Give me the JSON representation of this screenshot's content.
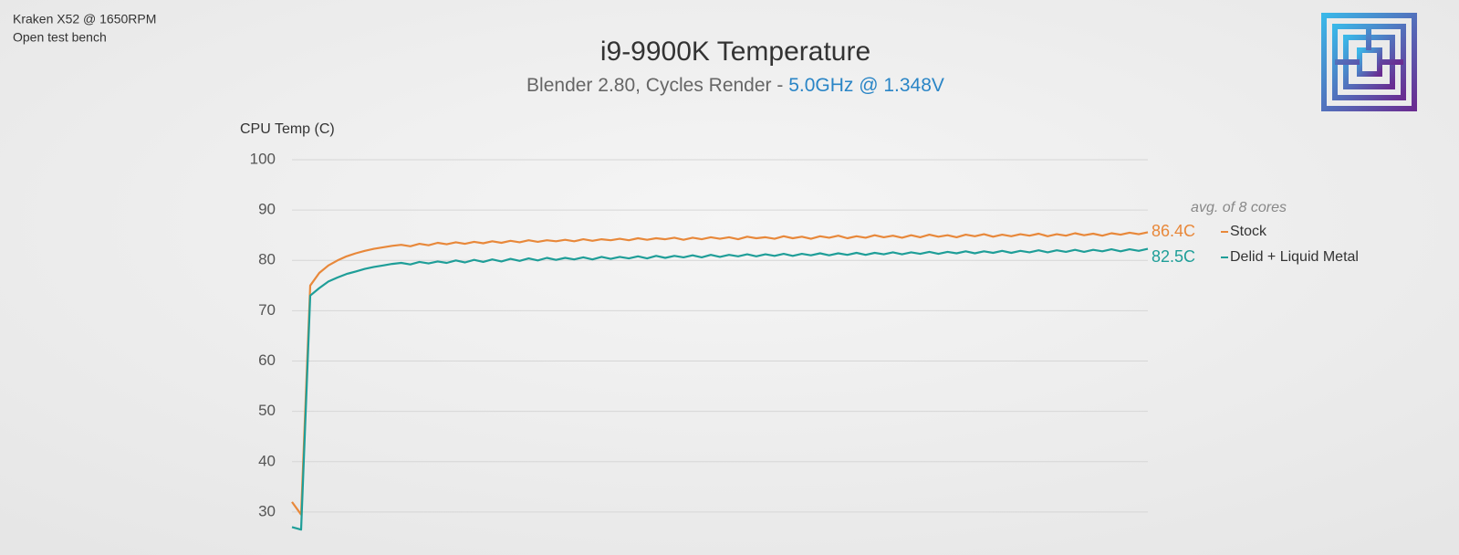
{
  "chart_data": {
    "type": "line",
    "notes": [
      "Kraken X52 @ 1650RPM",
      "Open test bench"
    ],
    "title": "i9-9900K Temperature",
    "subtitle": "Blender 2.80, Cycles Render - ",
    "subtitle_highlight": "5.0GHz @ 1.348V",
    "y_label": "CPU Temp (C)",
    "legend_title": "avg. of 8 cores",
    "ylim": [
      22,
      100
    ],
    "yticks": [
      30,
      40,
      50,
      60,
      70,
      80,
      90,
      100
    ],
    "grid": true,
    "series": [
      {
        "name": "Stock",
        "color": "#e8883a",
        "end_label": "86.4C",
        "values": [
          32,
          29.5,
          75,
          77.5,
          79,
          80,
          80.8,
          81.4,
          81.9,
          82.3,
          82.6,
          82.9,
          83.1,
          82.8,
          83.3,
          83.0,
          83.5,
          83.2,
          83.6,
          83.3,
          83.7,
          83.4,
          83.8,
          83.5,
          83.9,
          83.6,
          84.0,
          83.7,
          84.0,
          83.8,
          84.1,
          83.8,
          84.2,
          83.9,
          84.2,
          84.0,
          84.3,
          84.0,
          84.4,
          84.1,
          84.4,
          84.2,
          84.5,
          84.1,
          84.5,
          84.2,
          84.6,
          84.3,
          84.6,
          84.2,
          84.7,
          84.4,
          84.6,
          84.3,
          84.8,
          84.4,
          84.7,
          84.3,
          84.8,
          84.5,
          84.9,
          84.4,
          84.8,
          84.5,
          85.0,
          84.6,
          84.9,
          84.5,
          85.0,
          84.6,
          85.1,
          84.7,
          85.0,
          84.6,
          85.1,
          84.8,
          85.2,
          84.7,
          85.1,
          84.8,
          85.2,
          84.9,
          85.3,
          84.8,
          85.2,
          84.9,
          85.4,
          85.0,
          85.3,
          84.9,
          85.4,
          85.1,
          85.5,
          85.2,
          85.6
        ]
      },
      {
        "name": "Delid + Liquid Metal",
        "color": "#1f9e98",
        "end_label": "82.5C",
        "values": [
          27,
          26.5,
          73,
          74.5,
          75.8,
          76.6,
          77.3,
          77.8,
          78.3,
          78.7,
          79.0,
          79.3,
          79.5,
          79.2,
          79.7,
          79.4,
          79.8,
          79.5,
          80.0,
          79.6,
          80.1,
          79.7,
          80.2,
          79.8,
          80.3,
          79.9,
          80.4,
          80.0,
          80.5,
          80.1,
          80.5,
          80.2,
          80.6,
          80.2,
          80.7,
          80.3,
          80.7,
          80.4,
          80.8,
          80.4,
          80.9,
          80.5,
          80.9,
          80.6,
          81.0,
          80.6,
          81.1,
          80.7,
          81.1,
          80.8,
          81.2,
          80.8,
          81.2,
          80.9,
          81.3,
          80.9,
          81.3,
          81.0,
          81.4,
          81.0,
          81.4,
          81.1,
          81.5,
          81.1,
          81.5,
          81.2,
          81.6,
          81.2,
          81.6,
          81.3,
          81.7,
          81.3,
          81.7,
          81.4,
          81.8,
          81.4,
          81.8,
          81.5,
          81.9,
          81.5,
          81.9,
          81.6,
          82.0,
          81.6,
          82.0,
          81.7,
          82.1,
          81.7,
          82.1,
          81.8,
          82.2,
          81.8,
          82.2,
          81.9,
          82.3
        ]
      }
    ]
  }
}
